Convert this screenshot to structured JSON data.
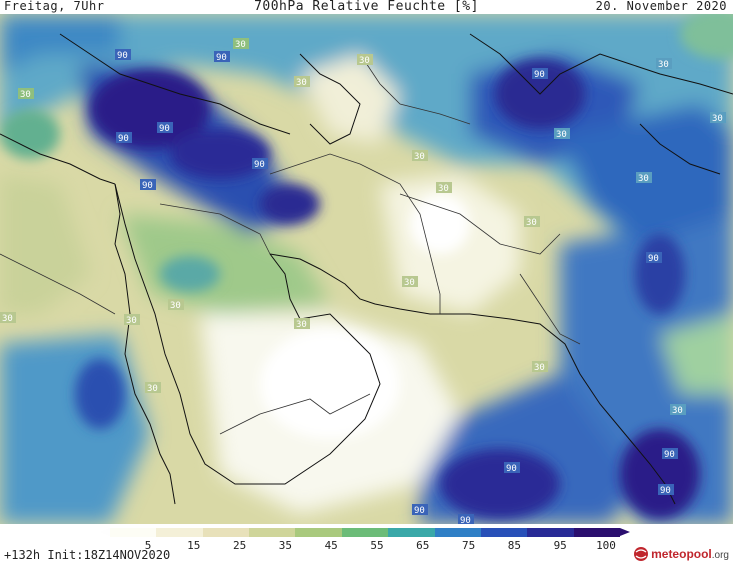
{
  "header": {
    "left": "Freitag, 7Uhr",
    "title": "700hPa Relative Feuchte [%]",
    "date": "20. November 2020"
  },
  "footer": {
    "run_info": "+132h  Init:18Z14NOV2020",
    "logo_text": "meteopool",
    "logo_suffix": ".org"
  },
  "colorbar": {
    "tick_labels": [
      "5",
      "15",
      "25",
      "35",
      "45",
      "55",
      "65",
      "75",
      "85",
      "95",
      "100"
    ],
    "colors": [
      "#fdfdf5",
      "#f4f0d8",
      "#e8e1ba",
      "#cfd59a",
      "#a9c97d",
      "#6cbc78",
      "#3aa8a8",
      "#2f7fc6",
      "#2850b8",
      "#282a96",
      "#2a0e6e"
    ]
  },
  "map": {
    "contour_labels": [
      "90",
      "90",
      "90",
      "90",
      "90",
      "90",
      "30",
      "30",
      "30",
      "30",
      "30",
      "30",
      "30",
      "30",
      "30",
      "30",
      "30",
      "30",
      "30",
      "30",
      "30",
      "30",
      "90",
      "90",
      "90",
      "90",
      "90",
      "90",
      "90",
      "30",
      "30",
      "30"
    ]
  }
}
